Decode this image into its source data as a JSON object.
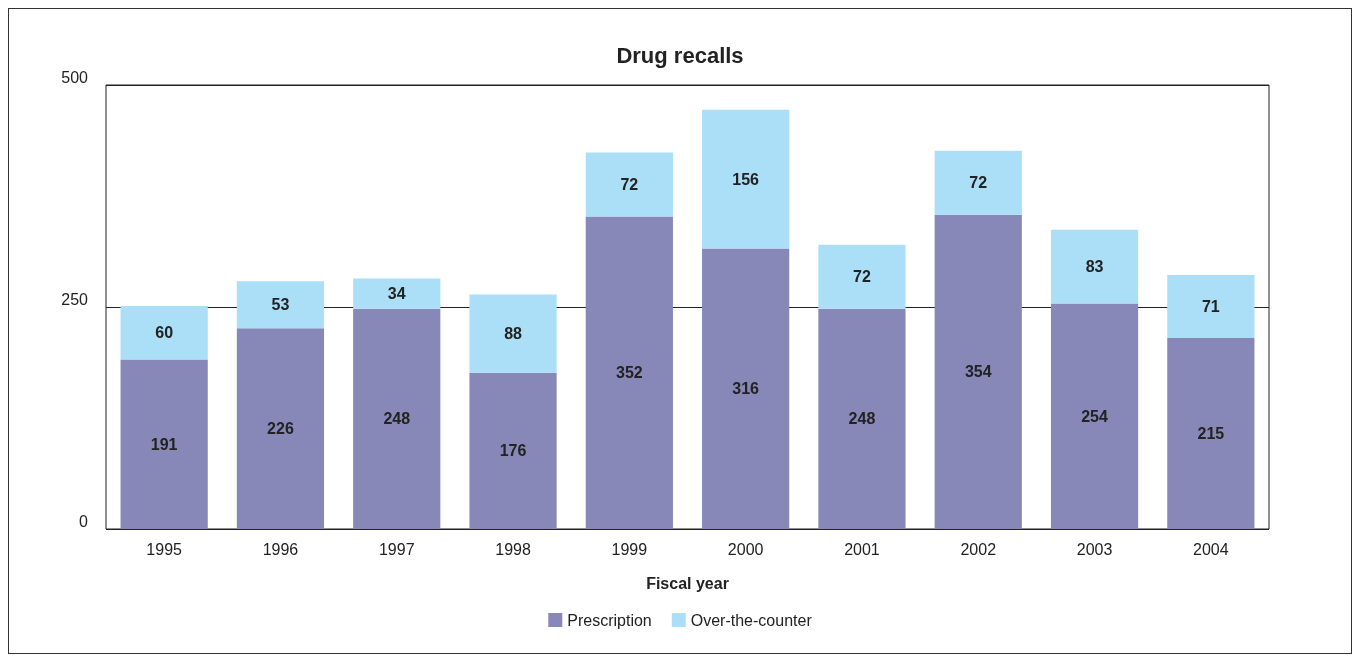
{
  "chart_data": {
    "type": "bar",
    "title": "Drug recalls",
    "xlabel": "Fiscal year",
    "categories": [
      "1995",
      "1996",
      "1997",
      "1998",
      "1999",
      "2000",
      "2001",
      "2002",
      "2003",
      "2004"
    ],
    "stacked": true,
    "series": [
      {
        "name": "Prescription",
        "color": "#8888b8",
        "values": [
          191,
          226,
          248,
          176,
          352,
          316,
          248,
          354,
          254,
          215
        ]
      },
      {
        "name": "Over-the-counter",
        "color": "#aadff7",
        "values": [
          60,
          53,
          34,
          88,
          72,
          156,
          72,
          72,
          83,
          71
        ]
      }
    ],
    "ylim": [
      0,
      500
    ],
    "yticks": [
      0,
      250,
      500
    ],
    "grid": "y",
    "legend": "bottom",
    "data_labels": true
  }
}
